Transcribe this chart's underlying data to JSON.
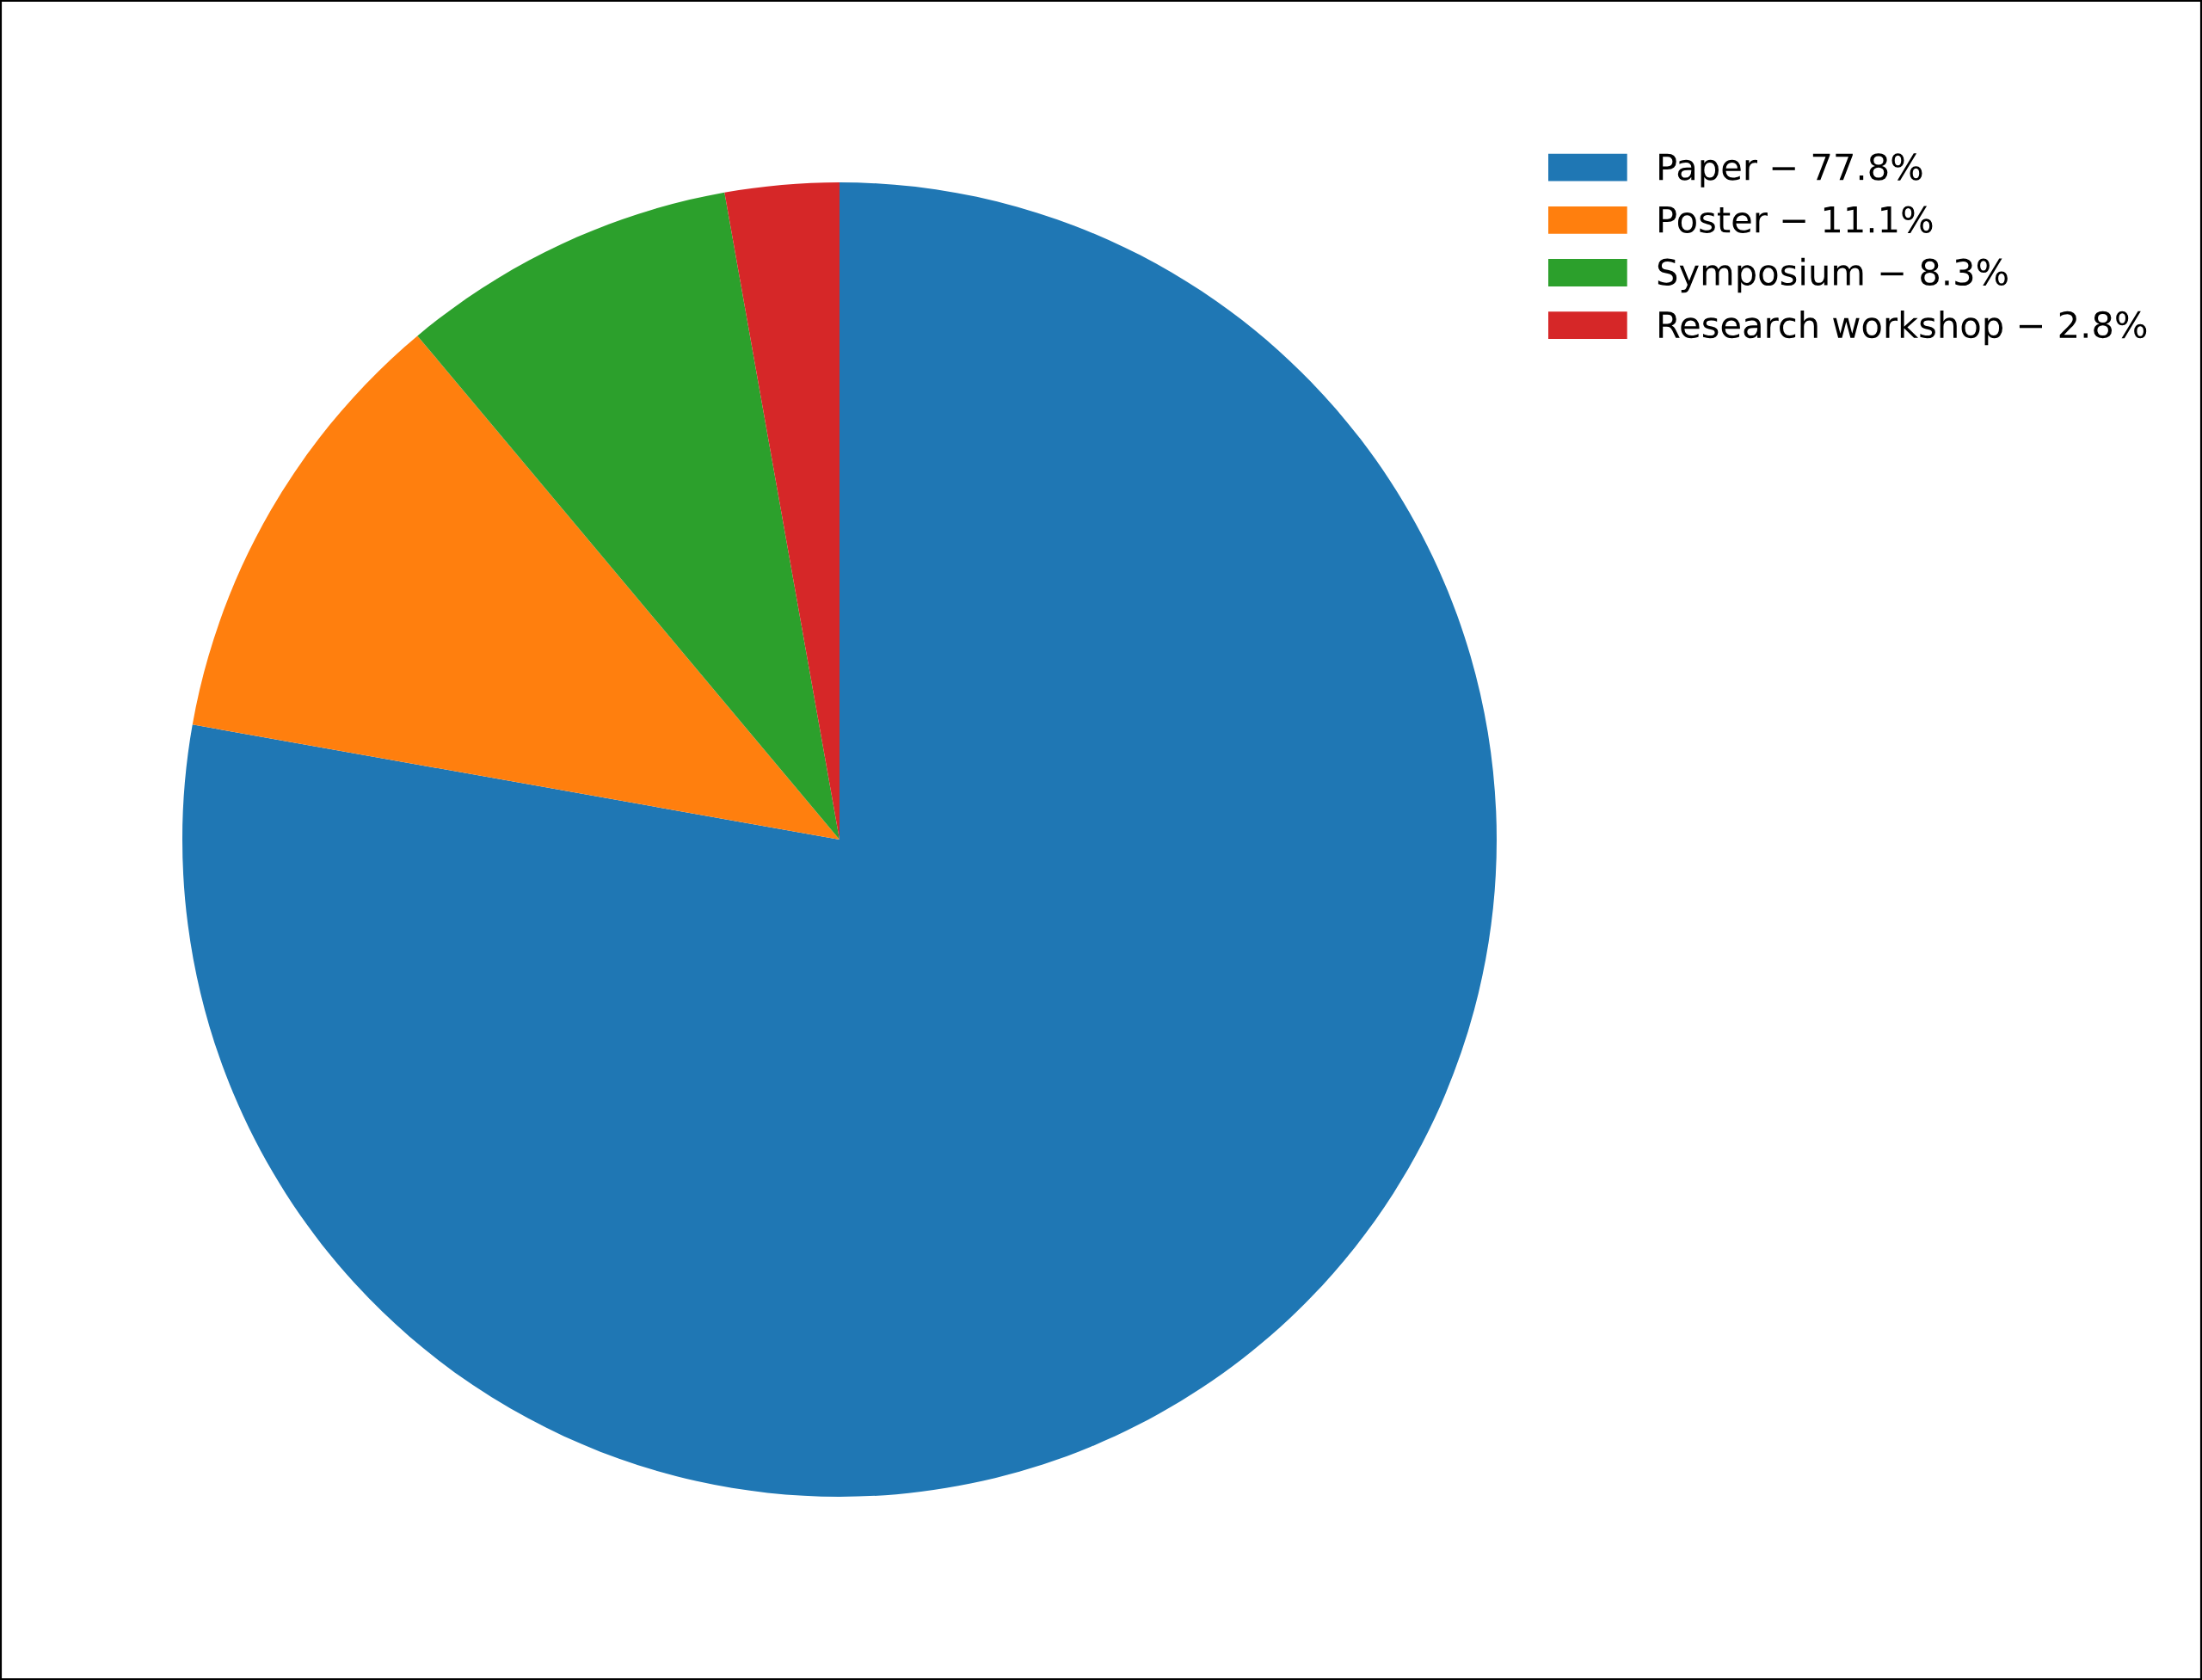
{
  "chart_data": {
    "type": "pie",
    "categories": [
      "Paper − 77.8%",
      "Poster − 11.1%",
      "Symposium − 8.3%",
      "Research workshop − 2.8%"
    ],
    "values": [
      77.8,
      11.1,
      8.3,
      2.8
    ],
    "colors": [
      "#1f77b4",
      "#ff7f0e",
      "#2ca02c",
      "#d62728"
    ],
    "legend": "top right"
  }
}
